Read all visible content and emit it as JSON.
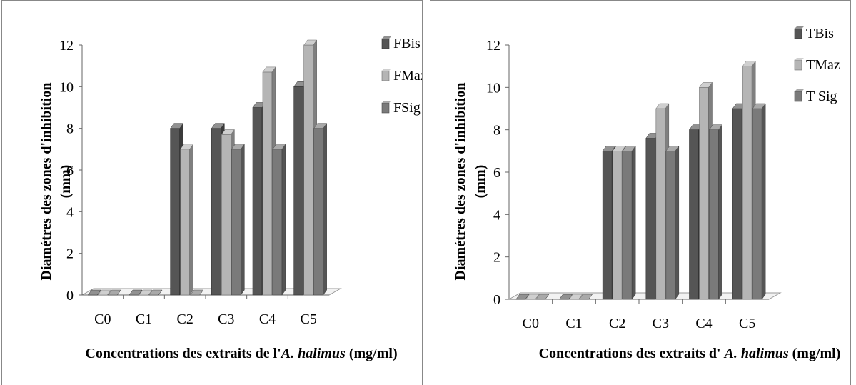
{
  "chart_data": [
    {
      "type": "bar",
      "categories": [
        "C0",
        "C1",
        "C2",
        "C3",
        "C4",
        "C5"
      ],
      "series": [
        {
          "name": "FBis",
          "values": [
            0,
            0,
            8,
            8,
            9,
            10
          ]
        },
        {
          "name": "FMaz",
          "values": [
            0,
            0,
            7,
            7.7,
            10.7,
            12
          ]
        },
        {
          "name": "FSig",
          "values": [
            0,
            0,
            0,
            7,
            7,
            8
          ]
        }
      ],
      "yticks": [
        "0",
        "2",
        "4",
        "6",
        "8",
        "10",
        "12"
      ],
      "ylim": [
        0,
        12
      ],
      "ylabel_line1": "Diamétres des zones d'inhibition",
      "ylabel_line2": "(mm)",
      "xlabel_prefix": "Concentrations des extraits de l'",
      "xlabel_italic": "A. halimus",
      "xlabel_suffix": " (mg/ml)",
      "legend": "right",
      "grid": false,
      "colors": [
        "#555555",
        "#b5b5b5",
        "#7a7a7a"
      ]
    },
    {
      "type": "bar",
      "categories": [
        "C0",
        "C1",
        "C2",
        "C3",
        "C4",
        "C5"
      ],
      "series": [
        {
          "name": "TBis",
          "values": [
            0,
            0,
            7,
            7.6,
            8,
            9
          ]
        },
        {
          "name": "TMaz",
          "values": [
            0,
            0,
            7,
            9,
            10,
            11
          ]
        },
        {
          "name": "T Sig",
          "values": [
            0,
            0,
            7,
            7,
            8,
            9
          ]
        }
      ],
      "yticks": [
        "0",
        "2",
        "4",
        "6",
        "8",
        "10",
        "12"
      ],
      "ylim": [
        0,
        12
      ],
      "ylabel_line1": "Diamétres des zones d'inhibition",
      "ylabel_line2": "(mm)",
      "xlabel_prefix": "Concentrations des extraits d' ",
      "xlabel_italic": "A. halimus",
      "xlabel_suffix": " (mg/ml)",
      "legend": "top-right",
      "grid": false,
      "colors": [
        "#555555",
        "#b5b5b5",
        "#7a7a7a"
      ]
    }
  ]
}
